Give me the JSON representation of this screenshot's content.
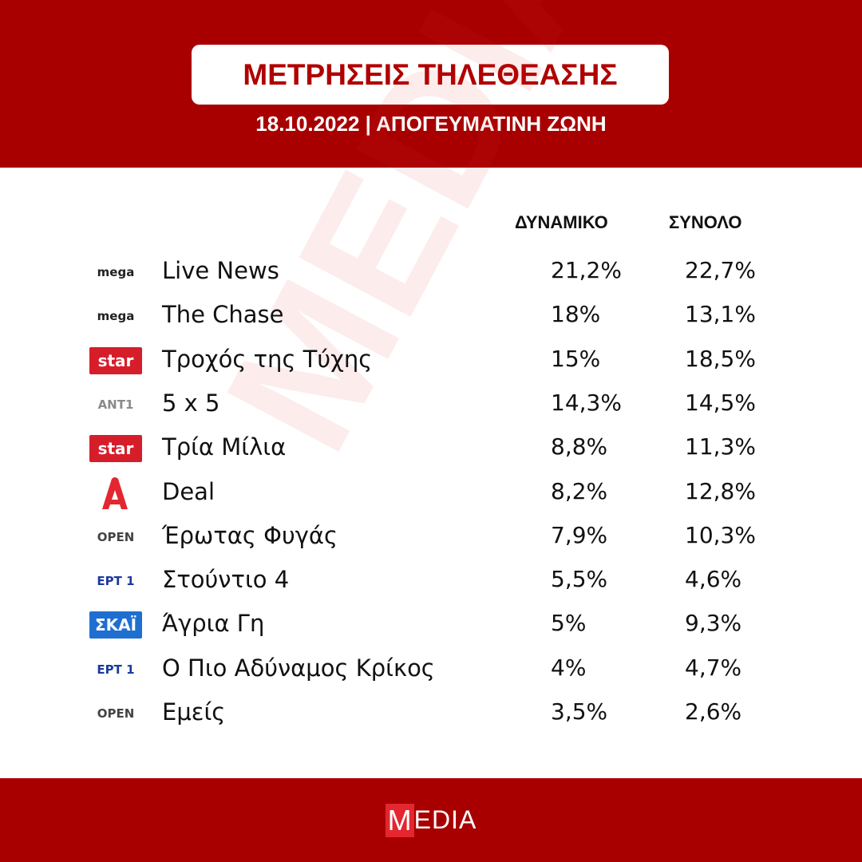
{
  "header": {
    "title": "ΜΕΤΡΗΣΕΙΣ ΤΗΛΕΘΕΑΣΗΣ",
    "subtitle": "18.10.2022 | ΑΠΟΓΕΥΜΑΤΙΝΗ ΖΩΝΗ"
  },
  "watermark": "MEDIA",
  "table": {
    "columns": [
      "ΔΥΝΑΜΙΚΟ",
      "ΣΥΝΟΛΟ"
    ],
    "rows": [
      {
        "logo": "mega",
        "logo_color": "#222222",
        "show": "Live News",
        "values": [
          "21,2%",
          "22,7%"
        ]
      },
      {
        "logo": "mega",
        "logo_color": "#222222",
        "show": "The Chase",
        "values": [
          "18%",
          "13,1%"
        ]
      },
      {
        "logo": "star",
        "logo_color": "#ffffff",
        "logo_bg": "#d61e2b",
        "show": "Τροχός της Τύχης",
        "values": [
          "15%",
          "18,5%"
        ]
      },
      {
        "logo": "ANT1",
        "logo_color": "#8a8a8a",
        "show": "5 x 5",
        "values": [
          "14,3%",
          "14,5%"
        ]
      },
      {
        "logo": "star",
        "logo_color": "#ffffff",
        "logo_bg": "#d61e2b",
        "show": "Τρία Μίλια",
        "values": [
          "8,8%",
          "11,3%"
        ]
      },
      {
        "logo_color": "#e3262f",
        "show": "Deal",
        "values": [
          "8,2%",
          "12,8%"
        ]
      },
      {
        "logo": "OPEN",
        "logo_color": "#444444",
        "show": "Έρωτας Φυγάς",
        "values": [
          "7,9%",
          "10,3%"
        ]
      },
      {
        "logo": "ΕΡΤ 1",
        "logo_color": "#1b3a9c",
        "show": "Στούντιο 4",
        "values": [
          "5,5%",
          "4,6%"
        ]
      },
      {
        "logo": "ΣΚΑΪ",
        "logo_color": "#ffffff",
        "logo_bg": "#1f6fd1",
        "show": "Άγρια Γη",
        "values": [
          "5%",
          "9,3%"
        ]
      },
      {
        "logo": "ΕΡΤ 1",
        "logo_color": "#1b3a9c",
        "show": "Ο Πιο Αδύναμος Κρίκος",
        "values": [
          "4%",
          "4,7%"
        ]
      },
      {
        "logo": "OPEN",
        "logo_color": "#444444",
        "show": "Εμείς",
        "values": [
          "3,5%",
          "2,6%"
        ]
      }
    ]
  },
  "footer": {
    "logo_mark": "M",
    "logo_rest": "EDIA"
  }
}
